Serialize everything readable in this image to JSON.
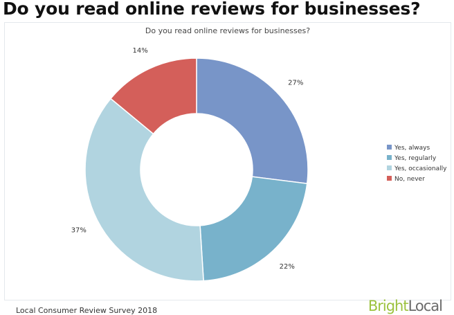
{
  "page": {
    "heading": "Do you read online reviews for businesses?",
    "source": "Local Consumer Review Survey 2018",
    "brand": {
      "part1": "Bright",
      "part2": "Local",
      "color1": "#9cc23f",
      "color2": "#6a6a6a"
    }
  },
  "chart_data": {
    "type": "pie",
    "variant": "donut",
    "title": "Do you read online reviews for businesses?",
    "categories": [
      "Yes, always",
      "Yes, regularly",
      "Yes, occasionally",
      "No, never"
    ],
    "values": [
      27,
      22,
      37,
      14
    ],
    "labels": [
      "27%",
      "22%",
      "37%",
      "14%"
    ],
    "colors": [
      "#7895c8",
      "#78b2cb",
      "#b1d4e0",
      "#d45f5a"
    ],
    "legend_position": "right",
    "start_angle_deg": 0,
    "direction": "clockwise"
  }
}
